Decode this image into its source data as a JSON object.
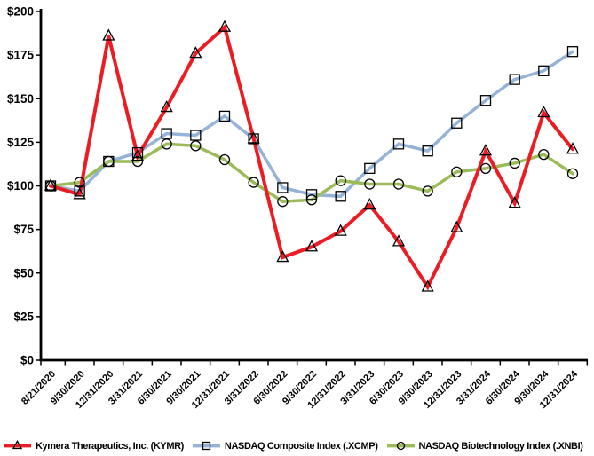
{
  "chart_data": {
    "type": "line",
    "title": "",
    "xlabel": "",
    "ylabel": "",
    "grid": false,
    "legend_position": "bottom",
    "ylim": [
      0,
      200
    ],
    "y_tick_values": [
      0,
      25,
      50,
      75,
      100,
      125,
      150,
      175,
      200
    ],
    "y_tick_labels": [
      "$0",
      "$25",
      "$50",
      "$75",
      "$100",
      "$125",
      "$150",
      "$175",
      "$200"
    ],
    "categories": [
      "8/21/2020",
      "9/30/2020",
      "12/31/2020",
      "3/31/2021",
      "6/30/2021",
      "9/30/2021",
      "12/31/2021",
      "3/31/2022",
      "6/30/2022",
      "9/30/2022",
      "12/31/2022",
      "3/31/2023",
      "6/30/2023",
      "9/30/2023",
      "12/31/2023",
      "3/31/2024",
      "6/30/2024",
      "9/30/2024",
      "12/31/2024"
    ],
    "series": [
      {
        "name": "Kymera Therapeutics, Inc. (KYMR)",
        "color": "#EC1C24",
        "marker": "triangle",
        "line_width": 4,
        "values": [
          100,
          95,
          186,
          117,
          145,
          176,
          191,
          127,
          59,
          65,
          74,
          89,
          68,
          42,
          76,
          120,
          90,
          142,
          121
        ]
      },
      {
        "name": "NASDAQ Composite Index (.XCMP)",
        "color": "#95B3D7",
        "marker": "square",
        "line_width": 3.5,
        "values": [
          100,
          97,
          114,
          119,
          130,
          129,
          140,
          127,
          99,
          95,
          94,
          110,
          124,
          120,
          136,
          149,
          161,
          166,
          177
        ]
      },
      {
        "name": "NASDAQ Biotechnology Index (.XNBI)",
        "color": "#9BBB59",
        "marker": "circle",
        "line_width": 3.5,
        "values": [
          100,
          102,
          114,
          114,
          124,
          123,
          115,
          102,
          91,
          92,
          103,
          101,
          101,
          97,
          108,
          110,
          113,
          118,
          107
        ]
      }
    ],
    "axis_color": "#000000",
    "marker_stroke": "#000000"
  }
}
